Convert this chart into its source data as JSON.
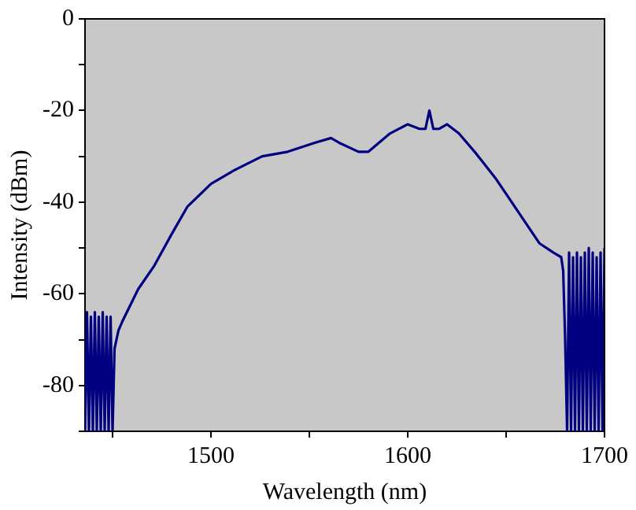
{
  "chart_data": {
    "type": "line",
    "xlabel": "Wavelength (nm)",
    "ylabel": "Intensity (dBm)",
    "xlim": [
      1436,
      1700
    ],
    "ylim": [
      -90,
      0
    ],
    "xticks": [
      {
        "value": 1450,
        "label": null
      },
      1500,
      {
        "value": 1550,
        "label": null
      },
      1600,
      {
        "value": 1650,
        "label": null
      },
      1700
    ],
    "yticks": [
      {
        "value": -90,
        "label": null
      },
      -80,
      {
        "value": -70,
        "label": null
      },
      -60,
      {
        "value": -50,
        "label": null
      },
      -40,
      {
        "value": -30,
        "label": null
      },
      -20,
      {
        "value": -10,
        "label": null
      },
      0
    ],
    "grid": false,
    "legend": false,
    "marker": "none",
    "line_style": "solid",
    "series": [
      {
        "color": "#000080",
        "x": [
          1436,
          1437,
          1438,
          1439,
          1440,
          1441,
          1442,
          1443,
          1444,
          1445,
          1446,
          1447,
          1448,
          1449,
          1450,
          1451,
          1453,
          1455,
          1463,
          1471,
          1480,
          1488,
          1500,
          1512,
          1526,
          1539,
          1553,
          1561,
          1565,
          1575,
          1580,
          1591,
          1600,
          1606,
          1609,
          1611,
          1613,
          1616,
          1620,
          1626,
          1634,
          1645,
          1656,
          1667,
          1674,
          1678,
          1679,
          1680,
          1681,
          1682,
          1683,
          1684,
          1685,
          1686,
          1687,
          1688,
          1689,
          1690,
          1691,
          1692,
          1693,
          1694,
          1695,
          1696,
          1697,
          1698,
          1699,
          1700
        ],
        "values": [
          -90,
          -64,
          -90,
          -65,
          -90,
          -64,
          -90,
          -65,
          -90,
          -64,
          -90,
          -65,
          -90,
          -65,
          -90,
          -72,
          -68,
          -66,
          -59,
          -54,
          -47,
          -41,
          -36,
          -33,
          -30,
          -29,
          -27,
          -26,
          -27,
          -29,
          -29,
          -25,
          -23,
          -24,
          -24,
          -20,
          -24,
          -24,
          -23,
          -25,
          -29,
          -35,
          -42,
          -49,
          -51,
          -52,
          -55,
          -70,
          -90,
          -51,
          -90,
          -52,
          -90,
          -51,
          -90,
          -52,
          -90,
          -51,
          -90,
          -50,
          -90,
          -51,
          -90,
          -52,
          -90,
          -51,
          -90,
          -50
        ]
      }
    ]
  }
}
